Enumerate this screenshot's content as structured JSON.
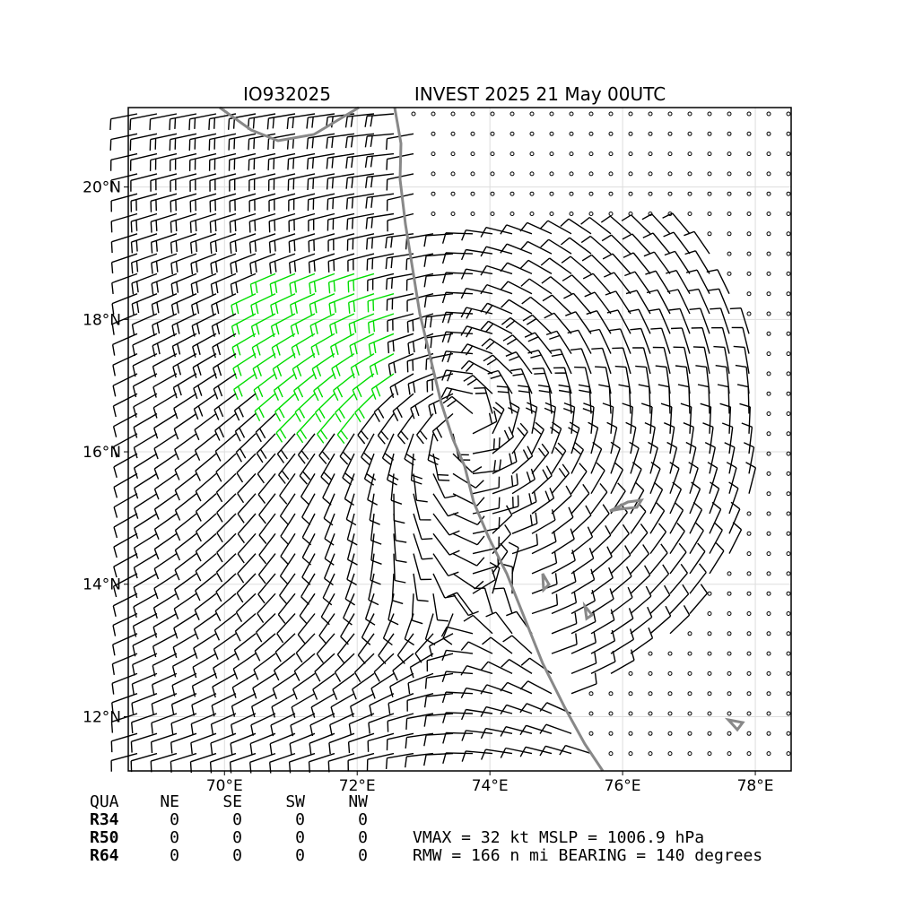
{
  "map": {
    "title_left": "IO932025",
    "title_right": "INVEST 2025 21 May 00UTC",
    "xlim": [
      68.55,
      78.54
    ],
    "ylim": [
      11.18,
      21.2
    ],
    "xticks": [
      {
        "value": 70,
        "label": "70°E"
      },
      {
        "value": 72,
        "label": "72°E"
      },
      {
        "value": 74,
        "label": "74°E"
      },
      {
        "value": 76,
        "label": "76°E"
      },
      {
        "value": 78,
        "label": "78°E"
      }
    ],
    "yticks": [
      {
        "value": 12,
        "label": "12°N"
      },
      {
        "value": 14,
        "label": "14°N"
      },
      {
        "value": 16,
        "label": "16°N"
      },
      {
        "value": 18,
        "label": "18°N"
      },
      {
        "value": 20,
        "label": "20°N"
      }
    ],
    "table": {
      "header": [
        "QUA",
        "NE",
        "SE",
        "SW",
        "NW"
      ],
      "rows": [
        [
          "R34",
          0,
          0,
          0,
          0
        ],
        [
          "R50",
          0,
          0,
          0,
          0
        ],
        [
          "R64",
          0,
          0,
          0,
          0
        ]
      ]
    },
    "vmax_line": "VMAX =  32 kt MSLP = 1006.9 hPa",
    "rmw_line": "RMW = 166 n mi BEARING = 140 degrees"
  }
}
